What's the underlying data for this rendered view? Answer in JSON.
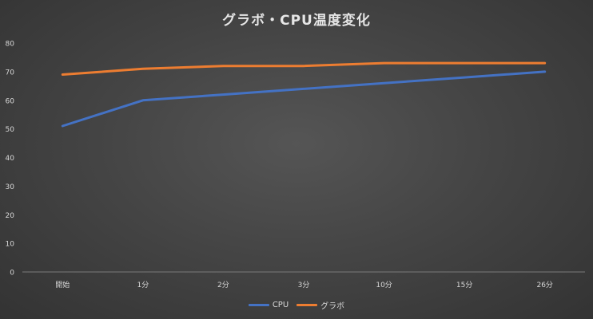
{
  "chart_data": {
    "type": "line",
    "title": "グラボ・CPU温度変化",
    "xlabel": "",
    "ylabel": "",
    "categories": [
      "開始",
      "1分",
      "2分",
      "3分",
      "10分",
      "15分",
      "26分"
    ],
    "ylim": [
      0,
      80
    ],
    "yticks": [
      "0",
      "10",
      "20",
      "30",
      "40",
      "50",
      "60",
      "70",
      "80"
    ],
    "grid": false,
    "legend_position": "bottom",
    "series": [
      {
        "name": "CPU",
        "color": "#4472C4",
        "values": [
          51,
          60,
          62,
          64,
          66,
          68,
          70
        ]
      },
      {
        "name": "グラボ",
        "color": "#ED7D31",
        "values": [
          69,
          71,
          72,
          72,
          73,
          73,
          73
        ]
      }
    ]
  }
}
